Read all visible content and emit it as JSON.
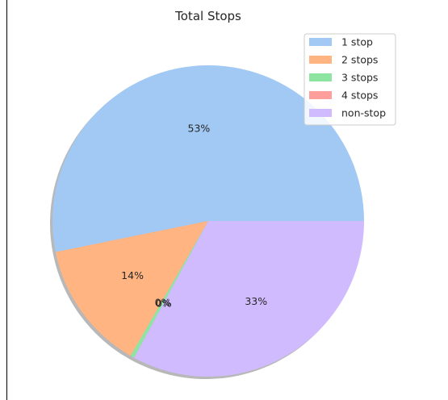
{
  "chart_data": {
    "type": "pie",
    "title": "Total Stops",
    "categories": [
      "1 stop",
      "2 stops",
      "3 stops",
      "4 stops",
      "non-stop"
    ],
    "values": [
      53.2,
      13.5,
      0.4,
      0.01,
      32.9
    ],
    "labels": [
      "53%",
      "14%",
      "0%",
      "0%",
      "33%"
    ],
    "colors": [
      "#a1c9f4",
      "#ffb482",
      "#8de5a1",
      "#ff9f9b",
      "#d0bbff"
    ],
    "shadow": true,
    "start_angle": 0,
    "direction": "counterclockwise",
    "legend": {
      "placement": "upper-right",
      "entries": [
        "1 stop",
        "2 stops",
        "3 stops",
        "4 stops",
        "non-stop"
      ]
    }
  }
}
